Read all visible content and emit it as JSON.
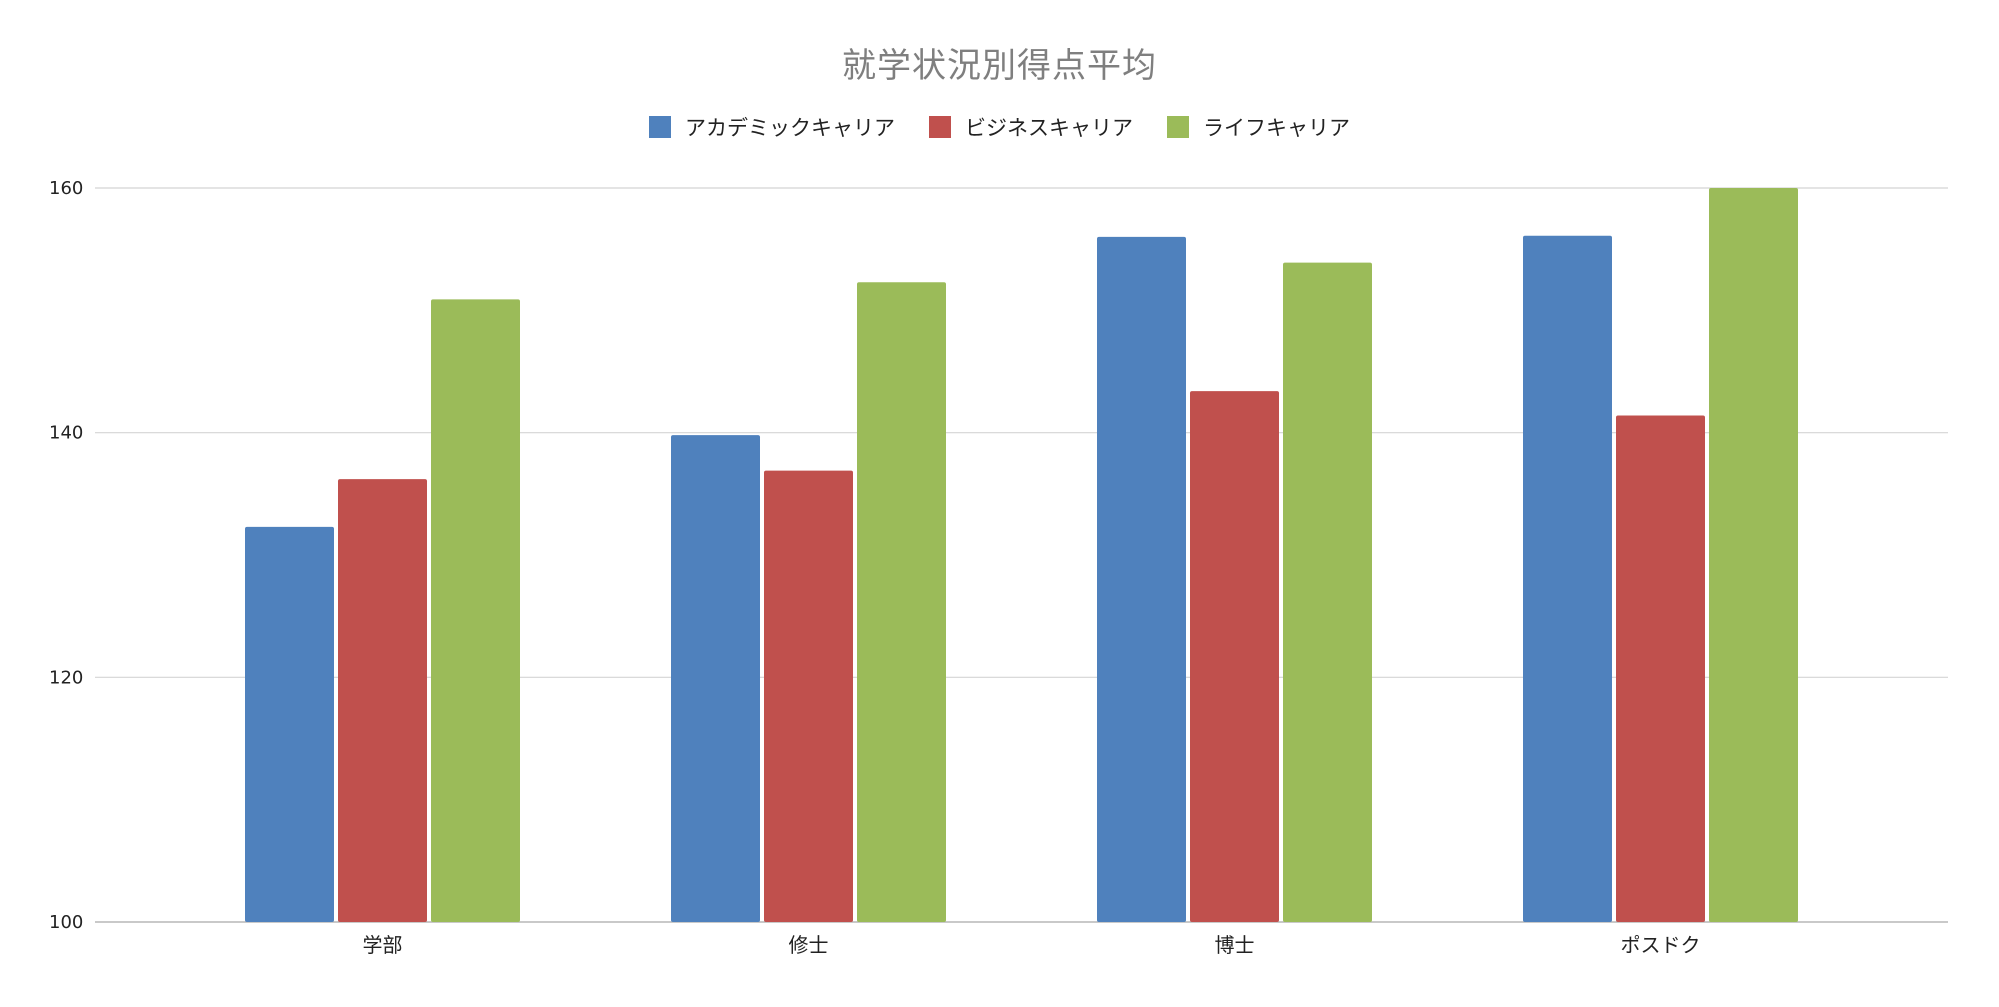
{
  "chart_data": {
    "type": "bar",
    "title": "就学状況別得点平均",
    "categories": [
      "学部",
      "修士",
      "博士",
      "ポスドク"
    ],
    "series": [
      {
        "name": "アカデミックキャリア",
        "color": "#4f81bd",
        "values": [
          132.3,
          139.8,
          156.0,
          156.1
        ]
      },
      {
        "name": "ビジネスキャリア",
        "color": "#c0504d",
        "values": [
          136.2,
          136.9,
          143.4,
          141.4
        ]
      },
      {
        "name": "ライフキャリア",
        "color": "#9bbb59",
        "values": [
          150.9,
          152.3,
          153.9,
          160.0
        ]
      }
    ],
    "ylim": [
      100,
      160
    ],
    "yticks": [
      "100",
      "120",
      "140",
      "160"
    ],
    "grid": true,
    "legend": "top-center",
    "xlabel": "",
    "ylabel": ""
  }
}
